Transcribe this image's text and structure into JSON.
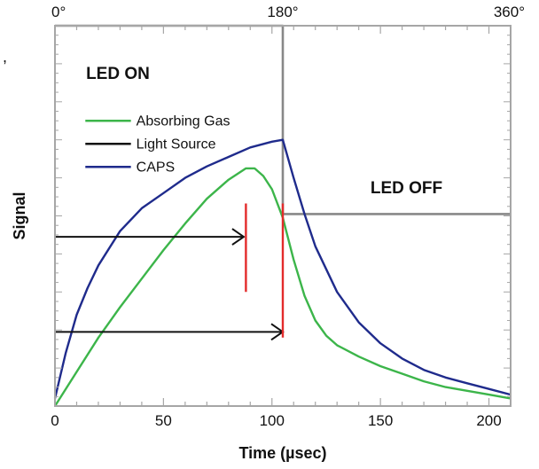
{
  "chart_data": {
    "type": "line",
    "title": "",
    "xlabel": "Time (µsec)",
    "ylabel": "Signal",
    "xlim": [
      0,
      210
    ],
    "ylim": [
      0,
      100
    ],
    "x_ticks": [
      "0",
      "50",
      "100",
      "150",
      "200"
    ],
    "top_axis_ticks": [
      {
        "x": 0,
        "label": "0°"
      },
      {
        "x": 105,
        "label": "180°"
      },
      {
        "x": 210,
        "label": "360°"
      }
    ],
    "grid": false,
    "legend_position": "upper-left",
    "stray_text": ",",
    "series": [
      {
        "name": "Absorbing Gas",
        "color": "#3cb54a",
        "x": [
          0,
          10,
          20,
          30,
          40,
          50,
          60,
          70,
          80,
          88,
          92,
          96,
          100,
          105,
          110,
          115,
          120,
          125,
          130,
          140,
          150,
          160,
          170,
          180,
          190,
          200,
          210
        ],
        "y": [
          0,
          9,
          18,
          26,
          33.5,
          41,
          48,
          54.5,
          59.5,
          62.5,
          62.5,
          60.5,
          57,
          49.5,
          38.5,
          29,
          22.5,
          18.5,
          16,
          13,
          10.5,
          8.5,
          6.5,
          5,
          4,
          3,
          2
        ]
      },
      {
        "name": "Light Source",
        "color": "#888888",
        "x": [
          0,
          105,
          105,
          210
        ],
        "y": [
          100,
          100,
          50.5,
          50.5
        ]
      },
      {
        "name": "CAPS",
        "color": "#1f2b8c",
        "x": [
          0,
          5,
          10,
          15,
          20,
          30,
          40,
          50,
          60,
          70,
          80,
          90,
          100,
          105,
          110,
          115,
          120,
          130,
          140,
          150,
          160,
          170,
          180,
          190,
          200,
          210
        ],
        "y": [
          2,
          14,
          24,
          31,
          37,
          46,
          52,
          56,
          60,
          63,
          65.5,
          68,
          69.5,
          70,
          60,
          50.5,
          42,
          30,
          22,
          16.5,
          12.5,
          9.5,
          7.5,
          6,
          4.5,
          3
        ]
      }
    ],
    "annotations": {
      "led_on": "LED ON",
      "led_off": "LED OFF",
      "arrows": [
        {
          "from_x": 0,
          "to_x": 87,
          "y": 44.5
        },
        {
          "from_x": 0,
          "to_x": 105,
          "y": 19.5
        }
      ],
      "markers": [
        {
          "x": 88,
          "y_low": 30,
          "y_high": 50
        },
        {
          "x": 105,
          "y_low": 18,
          "y_high": 50
        }
      ],
      "marker_color": "#e32b2b",
      "arrow_color": "#111111",
      "legend_light_source_color": "#111111"
    }
  }
}
